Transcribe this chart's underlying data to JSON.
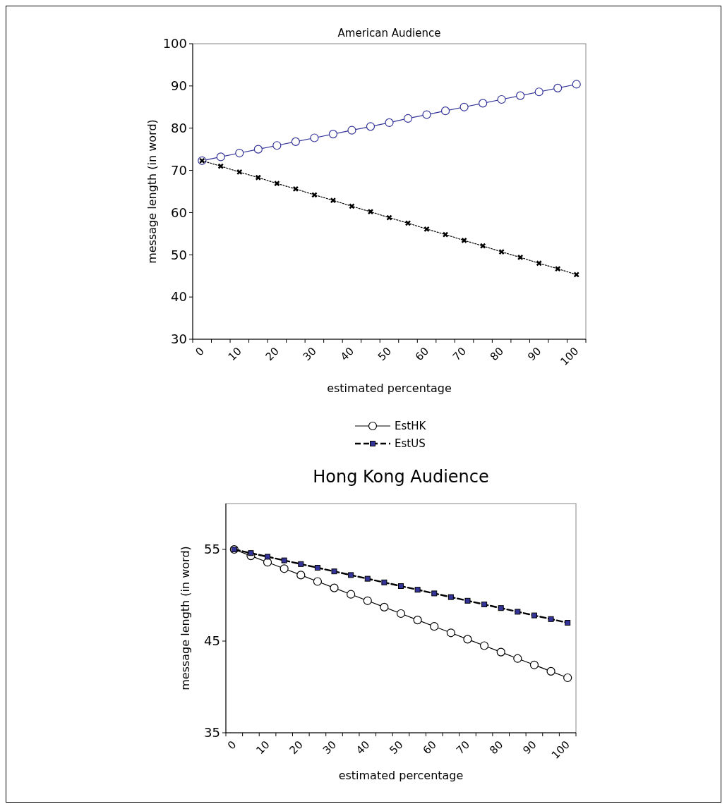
{
  "chart_data": [
    {
      "type": "line",
      "title": "American Audience",
      "xlabel": "estimated percentage",
      "ylabel": "message length (in word)",
      "categories": [
        "0",
        null,
        "10",
        null,
        "20",
        null,
        "30",
        null,
        "40",
        null,
        "50",
        null,
        "60",
        null,
        "70",
        null,
        "80",
        null,
        "90",
        null,
        "100"
      ],
      "ylim": [
        30,
        100
      ],
      "yticks": [
        30,
        40,
        50,
        60,
        70,
        80,
        90,
        100
      ],
      "grid": false,
      "legend": false,
      "series": [
        {
          "color": "#333399",
          "marker": "circle",
          "line_style": "solid",
          "values": [
            72.3,
            73.2,
            74.1,
            75.0,
            75.9,
            76.8,
            77.7,
            78.6,
            79.5,
            80.4,
            81.3,
            82.3,
            83.2,
            84.1,
            85.0,
            85.9,
            86.8,
            87.7,
            88.6,
            89.5,
            90.4
          ]
        },
        {
          "color": "#000000",
          "marker": "cross",
          "line_style": "dotted",
          "values": [
            72.3,
            71.0,
            69.6,
            68.3,
            66.9,
            65.6,
            64.2,
            62.9,
            61.5,
            60.2,
            58.8,
            57.5,
            56.1,
            54.8,
            53.4,
            52.1,
            50.7,
            49.4,
            48.0,
            46.7,
            45.3
          ]
        }
      ]
    },
    {
      "type": "line",
      "title": "Hong Kong Audience",
      "xlabel": "estimated percentage",
      "ylabel": "message length (in word)",
      "categories": [
        "0",
        null,
        "10",
        null,
        "20",
        null,
        "30",
        null,
        "40",
        null,
        "50",
        null,
        "60",
        null,
        "70",
        null,
        "80",
        null,
        "90",
        null,
        "100"
      ],
      "ylim": [
        35,
        60
      ],
      "yticks": [
        35,
        45,
        55
      ],
      "grid": false,
      "legend": "top",
      "series": [
        {
          "name": "EstHK",
          "color": "#000000",
          "marker": "circle",
          "line_style": "solid",
          "values": [
            55.0,
            54.3,
            53.6,
            52.9,
            52.2,
            51.5,
            50.8,
            50.1,
            49.4,
            48.7,
            48.0,
            47.3,
            46.6,
            45.9,
            45.2,
            44.5,
            43.8,
            43.1,
            42.4,
            41.7,
            41.0
          ]
        },
        {
          "name": "EstUS",
          "color": "#000000",
          "marker": "square",
          "line_style": "dashed",
          "values": [
            55.0,
            54.6,
            54.2,
            53.8,
            53.4,
            53.0,
            52.6,
            52.2,
            51.8,
            51.4,
            51.0,
            50.6,
            50.2,
            49.8,
            49.4,
            49.0,
            48.6,
            48.2,
            47.8,
            47.4,
            47.0
          ]
        }
      ]
    }
  ]
}
